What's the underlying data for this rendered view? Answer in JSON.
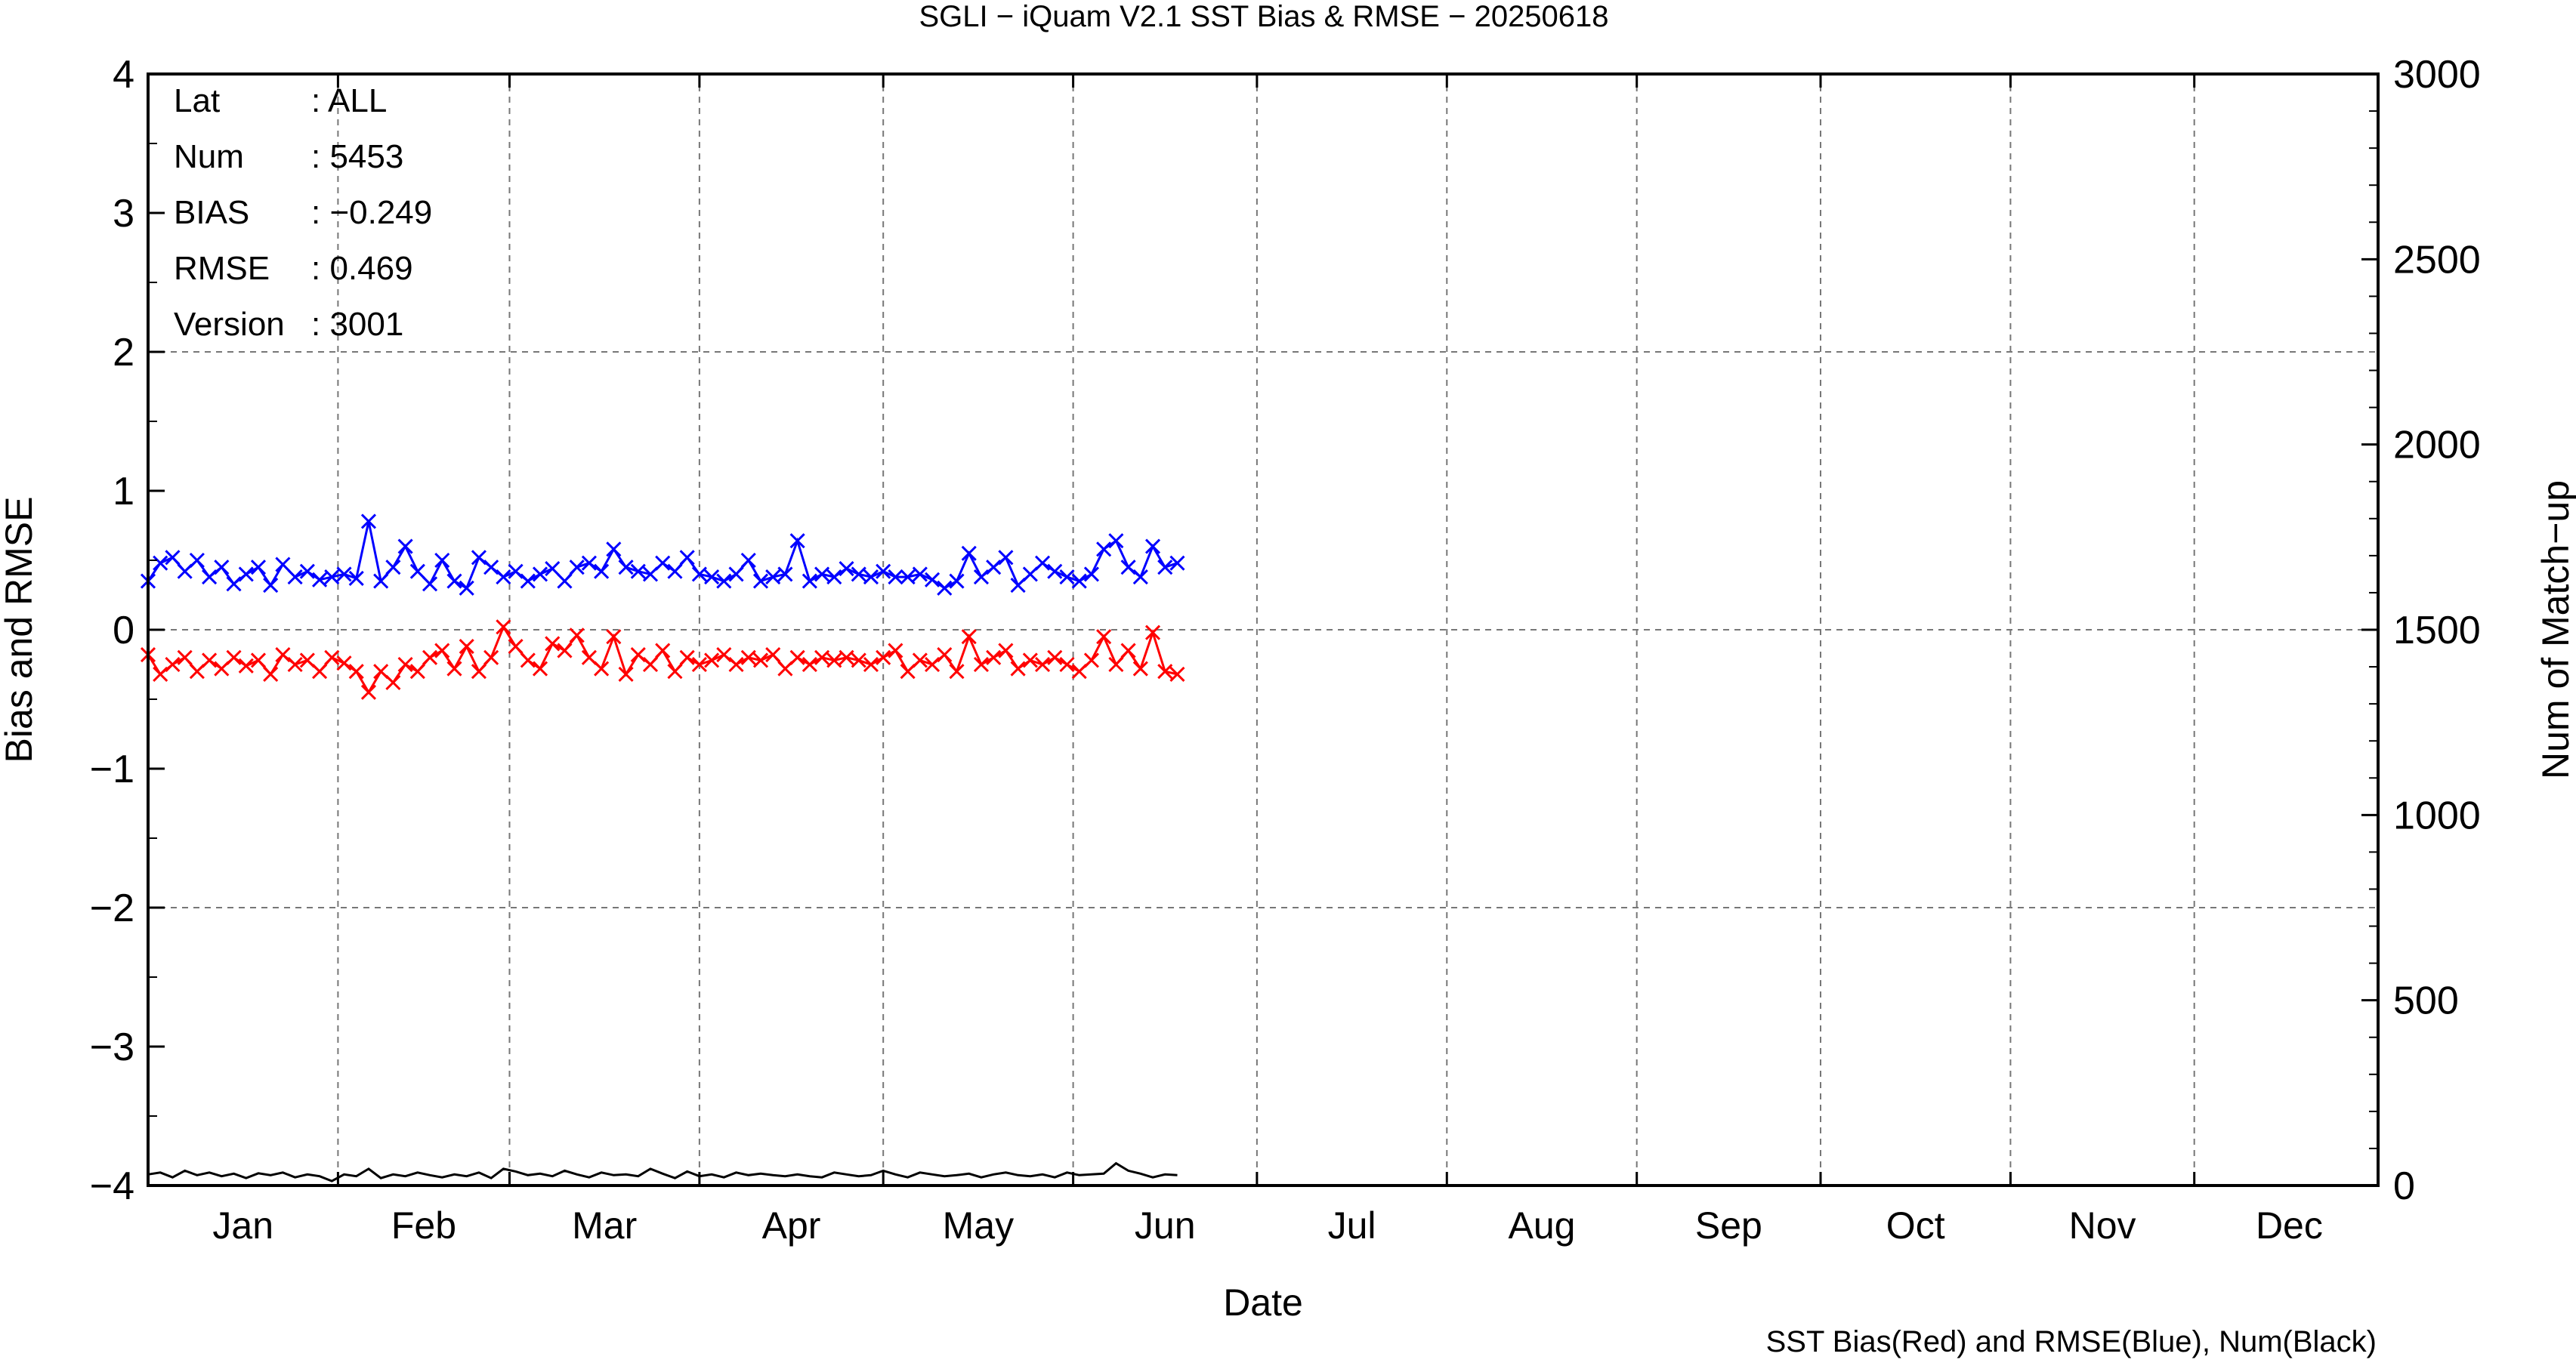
{
  "chart_data": {
    "type": "line",
    "title": "SGLI − iQuam V2.1 SST Bias & RMSE  − 20250618",
    "xlabel": "Date",
    "ylabel_left": "Bias and RMSE",
    "ylabel_right": "Num of Match−up",
    "caption": "SST Bias(Red) and RMSE(Blue), Num(Black)",
    "x_unit": "day of year 2025",
    "xlim": [
      1,
      365
    ],
    "ylim_left": [
      -4,
      4
    ],
    "ylim_right": [
      0,
      3000
    ],
    "left_ticks": [
      "−4",
      "−3",
      "−2",
      "−1",
      "0",
      "1",
      "2",
      "3",
      "4"
    ],
    "right_ticks": [
      "0",
      "500",
      "1000",
      "1500",
      "2000",
      "2500",
      "3000"
    ],
    "months": [
      "Jan",
      "Feb",
      "Mar",
      "Apr",
      "May",
      "Jun",
      "Jul",
      "Aug",
      "Sep",
      "Oct",
      "Nov",
      "Dec"
    ],
    "grid": true,
    "stats": [
      {
        "key": "Lat",
        "value": ": ALL"
      },
      {
        "key": "Num",
        "value": ": 5453"
      },
      {
        "key": "BIAS",
        "value": ": −0.249"
      },
      {
        "key": "RMSE",
        "value": ": 0.469"
      },
      {
        "key": "Version",
        "value": ": 3001"
      }
    ],
    "series": [
      {
        "label": "rmse",
        "color": "#0000ff",
        "axis": "left",
        "marker": "x",
        "x": [
          1,
          3,
          5,
          7,
          9,
          11,
          13,
          15,
          17,
          19,
          21,
          23,
          25,
          27,
          29,
          31,
          33,
          35,
          37,
          39,
          41,
          43,
          45,
          47,
          49,
          51,
          53,
          55,
          57,
          59,
          61,
          63,
          65,
          67,
          69,
          71,
          73,
          75,
          77,
          79,
          81,
          83,
          85,
          87,
          89,
          91,
          93,
          95,
          97,
          99,
          101,
          103,
          105,
          107,
          109,
          111,
          113,
          115,
          117,
          119,
          121,
          123,
          125,
          127,
          129,
          131,
          133,
          135,
          137,
          139,
          141,
          143,
          145,
          147,
          149,
          151,
          153,
          155,
          157,
          159,
          161,
          163,
          165,
          167,
          169
        ],
        "y": [
          0.35,
          0.48,
          0.52,
          0.42,
          0.5,
          0.38,
          0.45,
          0.33,
          0.4,
          0.45,
          0.32,
          0.47,
          0.38,
          0.42,
          0.36,
          0.38,
          0.4,
          0.37,
          0.78,
          0.35,
          0.45,
          0.6,
          0.42,
          0.33,
          0.5,
          0.35,
          0.3,
          0.52,
          0.45,
          0.38,
          0.42,
          0.35,
          0.4,
          0.44,
          0.35,
          0.45,
          0.48,
          0.42,
          0.58,
          0.45,
          0.42,
          0.4,
          0.48,
          0.42,
          0.52,
          0.4,
          0.38,
          0.35,
          0.4,
          0.5,
          0.35,
          0.38,
          0.4,
          0.64,
          0.35,
          0.4,
          0.38,
          0.44,
          0.4,
          0.38,
          0.42,
          0.38,
          0.38,
          0.4,
          0.36,
          0.3,
          0.35,
          0.55,
          0.38,
          0.45,
          0.52,
          0.32,
          0.4,
          0.48,
          0.42,
          0.38,
          0.35,
          0.4,
          0.58,
          0.64,
          0.45,
          0.38,
          0.6,
          0.45,
          0.48
        ]
      },
      {
        "label": "bias",
        "color": "#ff0000",
        "axis": "left",
        "marker": "x",
        "x": [
          1,
          3,
          5,
          7,
          9,
          11,
          13,
          15,
          17,
          19,
          21,
          23,
          25,
          27,
          29,
          31,
          33,
          35,
          37,
          39,
          41,
          43,
          45,
          47,
          49,
          51,
          53,
          55,
          57,
          59,
          61,
          63,
          65,
          67,
          69,
          71,
          73,
          75,
          77,
          79,
          81,
          83,
          85,
          87,
          89,
          91,
          93,
          95,
          97,
          99,
          101,
          103,
          105,
          107,
          109,
          111,
          113,
          115,
          117,
          119,
          121,
          123,
          125,
          127,
          129,
          131,
          133,
          135,
          137,
          139,
          141,
          143,
          145,
          147,
          149,
          151,
          153,
          155,
          157,
          159,
          161,
          163,
          165,
          167,
          169
        ],
        "y": [
          -0.18,
          -0.32,
          -0.25,
          -0.2,
          -0.3,
          -0.22,
          -0.28,
          -0.2,
          -0.26,
          -0.22,
          -0.32,
          -0.18,
          -0.25,
          -0.22,
          -0.3,
          -0.2,
          -0.24,
          -0.3,
          -0.45,
          -0.3,
          -0.38,
          -0.25,
          -0.3,
          -0.2,
          -0.15,
          -0.28,
          -0.12,
          -0.3,
          -0.2,
          0.02,
          -0.12,
          -0.22,
          -0.28,
          -0.1,
          -0.15,
          -0.04,
          -0.2,
          -0.28,
          -0.05,
          -0.32,
          -0.18,
          -0.25,
          -0.15,
          -0.3,
          -0.2,
          -0.25,
          -0.22,
          -0.18,
          -0.25,
          -0.2,
          -0.22,
          -0.18,
          -0.28,
          -0.2,
          -0.25,
          -0.2,
          -0.22,
          -0.2,
          -0.22,
          -0.25,
          -0.2,
          -0.15,
          -0.3,
          -0.22,
          -0.25,
          -0.18,
          -0.3,
          -0.05,
          -0.25,
          -0.2,
          -0.15,
          -0.28,
          -0.22,
          -0.25,
          -0.2,
          -0.25,
          -0.3,
          -0.22,
          -0.05,
          -0.25,
          -0.15,
          -0.28,
          -0.02,
          -0.3,
          -0.32
        ]
      },
      {
        "label": "num",
        "color": "#000000",
        "axis": "right",
        "marker": "none",
        "x": [
          1,
          3,
          5,
          7,
          9,
          11,
          13,
          15,
          17,
          19,
          21,
          23,
          25,
          27,
          29,
          31,
          33,
          35,
          37,
          39,
          41,
          43,
          45,
          47,
          49,
          51,
          53,
          55,
          57,
          59,
          61,
          63,
          65,
          67,
          69,
          71,
          73,
          75,
          77,
          79,
          81,
          83,
          85,
          87,
          89,
          91,
          93,
          95,
          97,
          99,
          101,
          103,
          105,
          107,
          109,
          111,
          113,
          115,
          117,
          119,
          121,
          123,
          125,
          127,
          129,
          131,
          133,
          135,
          137,
          139,
          141,
          143,
          145,
          147,
          149,
          151,
          153,
          155,
          157,
          159,
          161,
          163,
          165,
          167,
          169
        ],
        "y": [
          30,
          35,
          22,
          40,
          28,
          35,
          25,
          32,
          20,
          33,
          28,
          35,
          22,
          30,
          25,
          12,
          30,
          25,
          45,
          20,
          30,
          25,
          35,
          28,
          22,
          30,
          25,
          35,
          20,
          45,
          38,
          28,
          32,
          25,
          40,
          30,
          22,
          35,
          28,
          30,
          25,
          45,
          32,
          20,
          38,
          25,
          30,
          22,
          35,
          28,
          32,
          28,
          25,
          30,
          25,
          22,
          35,
          30,
          25,
          28,
          40,
          30,
          22,
          35,
          30,
          25,
          28,
          32,
          22,
          30,
          35,
          28,
          25,
          30,
          22,
          35,
          28,
          30,
          32,
          60,
          40,
          32,
          22,
          30,
          28
        ]
      }
    ]
  }
}
